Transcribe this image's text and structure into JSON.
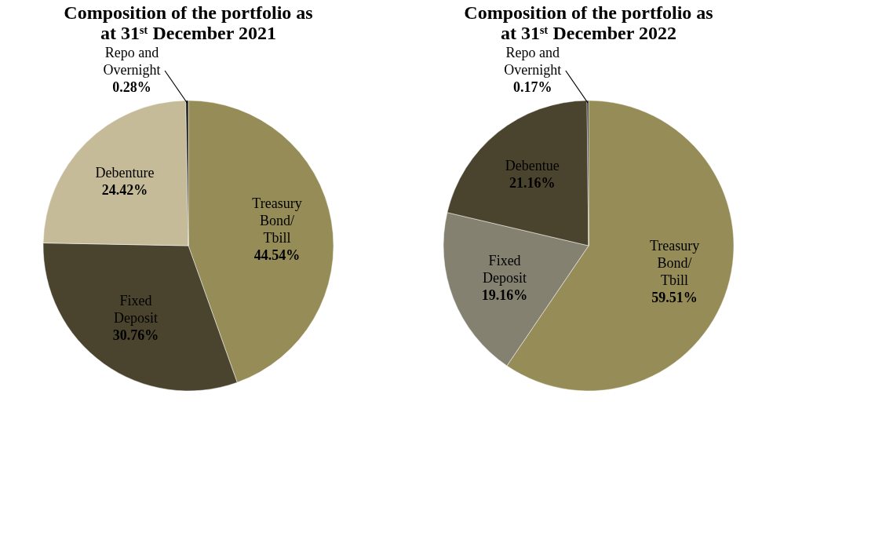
{
  "chart_data": [
    {
      "type": "pie",
      "title": "Composition of the portfolio as at 31ˢᵗ December 2021",
      "categories": [
        "Treasury Bond/ Tbill",
        "Fixed Deposit",
        "Debenture",
        "Repo and Overnight"
      ],
      "values": [
        44.54,
        30.76,
        24.42,
        0.28
      ],
      "colors": [
        "#968c58",
        "#4a432d",
        "#c5bb98",
        "#1a1a1a"
      ],
      "value_labels": [
        "44.54%",
        "30.76%",
        "24.42%",
        "0.28%"
      ],
      "legend": false
    },
    {
      "type": "pie",
      "title": "Composition of the portfolio as at 31ˢᵗ December 2022",
      "categories": [
        "Treasury Bond/ Tbill",
        "Fixed Deposit",
        "Debentue",
        "Repo and Overnight"
      ],
      "values": [
        59.51,
        19.16,
        21.16,
        0.17
      ],
      "colors": [
        "#968c58",
        "#858170",
        "#4a432d",
        "#1a1a1a"
      ],
      "value_labels": [
        "59.51%",
        "19.16%",
        "21.16%",
        "0.17%"
      ],
      "legend": false
    }
  ]
}
